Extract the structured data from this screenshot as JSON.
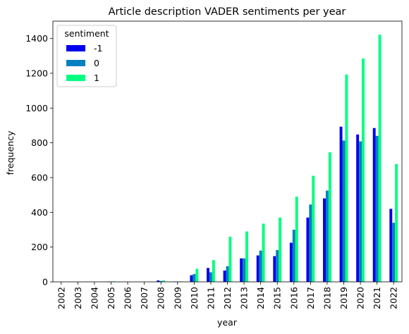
{
  "chart_data": {
    "type": "bar",
    "title": "Article description VADER sentiments per year",
    "xlabel": "year",
    "ylabel": "frequency",
    "ylim": [
      0,
      1500
    ],
    "yticks": [
      "0",
      "200",
      "400",
      "600",
      "800",
      "1000",
      "1200",
      "1400"
    ],
    "grid": false,
    "legend": {
      "title": "sentiment",
      "position": "top-left"
    },
    "categories": [
      "2002",
      "2003",
      "2004",
      "2005",
      "2006",
      "2007",
      "2008",
      "2009",
      "2010",
      "2011",
      "2012",
      "2013",
      "2014",
      "2015",
      "2016",
      "2017",
      "2018",
      "2019",
      "2020",
      "2021",
      "2022"
    ],
    "series": [
      {
        "name": "-1",
        "color": "#0000ee",
        "values": [
          0,
          0,
          0,
          2,
          0,
          0,
          8,
          2,
          38,
          80,
          65,
          135,
          152,
          148,
          225,
          370,
          480,
          893,
          848,
          885,
          420
        ]
      },
      {
        "name": "0",
        "color": "#0080c0",
        "values": [
          0,
          0,
          0,
          1,
          0,
          0,
          5,
          2,
          45,
          55,
          90,
          135,
          180,
          183,
          300,
          445,
          525,
          813,
          808,
          840,
          340
        ]
      },
      {
        "name": "1",
        "color": "#00ff80",
        "values": [
          0,
          0,
          0,
          3,
          1,
          0,
          8,
          3,
          75,
          125,
          260,
          290,
          335,
          370,
          490,
          610,
          745,
          1193,
          1285,
          1422,
          678
        ]
      }
    ]
  }
}
